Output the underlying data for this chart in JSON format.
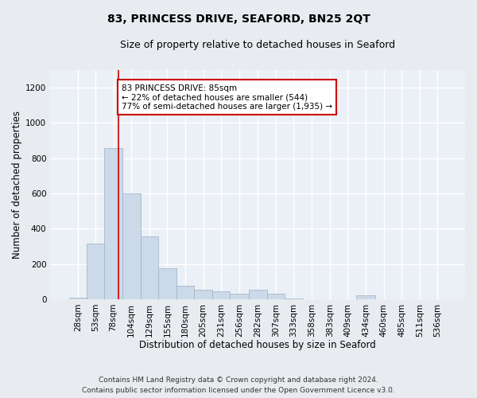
{
  "title": "83, PRINCESS DRIVE, SEAFORD, BN25 2QT",
  "subtitle": "Size of property relative to detached houses in Seaford",
  "xlabel": "Distribution of detached houses by size in Seaford",
  "ylabel": "Number of detached properties",
  "footer_line1": "Contains HM Land Registry data © Crown copyright and database right 2024.",
  "footer_line2": "Contains public sector information licensed under the Open Government Licence v3.0.",
  "annotation_line1": "83 PRINCESS DRIVE: 85sqm",
  "annotation_line2": "← 22% of detached houses are smaller (544)",
  "annotation_line3": "77% of semi-detached houses are larger (1,935) →",
  "bar_color": "#ccd9e8",
  "bar_edgecolor": "#9ab0c8",
  "redline_color": "#cc0000",
  "redline_x": 85,
  "annotation_box_facecolor": "#ffffff",
  "annotation_box_edgecolor": "#cc0000",
  "categories": [
    "28sqm",
    "53sqm",
    "78sqm",
    "104sqm",
    "129sqm",
    "155sqm",
    "180sqm",
    "205sqm",
    "231sqm",
    "256sqm",
    "282sqm",
    "307sqm",
    "333sqm",
    "358sqm",
    "383sqm",
    "409sqm",
    "434sqm",
    "460sqm",
    "485sqm",
    "511sqm",
    "536sqm"
  ],
  "bin_edges": [
    15.5,
    40.5,
    65.5,
    90.5,
    116.5,
    141.5,
    167.5,
    192.5,
    218.5,
    243.5,
    269.5,
    295.5,
    320.5,
    346.5,
    371.5,
    397.5,
    422.5,
    448.5,
    473.5,
    499.5,
    524.5,
    549.5
  ],
  "values": [
    10,
    315,
    855,
    600,
    355,
    175,
    75,
    55,
    45,
    30,
    55,
    30,
    5,
    0,
    0,
    0,
    20,
    0,
    0,
    0,
    0
  ],
  "ylim": [
    0,
    1300
  ],
  "yticks": [
    0,
    200,
    400,
    600,
    800,
    1000,
    1200
  ],
  "fig_bg_color": "#e8ecf0",
  "plot_bg_color": "#eaf0f6",
  "grid_color": "#ffffff",
  "title_fontsize": 10,
  "subtitle_fontsize": 9,
  "axis_label_fontsize": 8.5,
  "tick_fontsize": 7.5,
  "footer_fontsize": 6.5,
  "annotation_fontsize": 7.5
}
